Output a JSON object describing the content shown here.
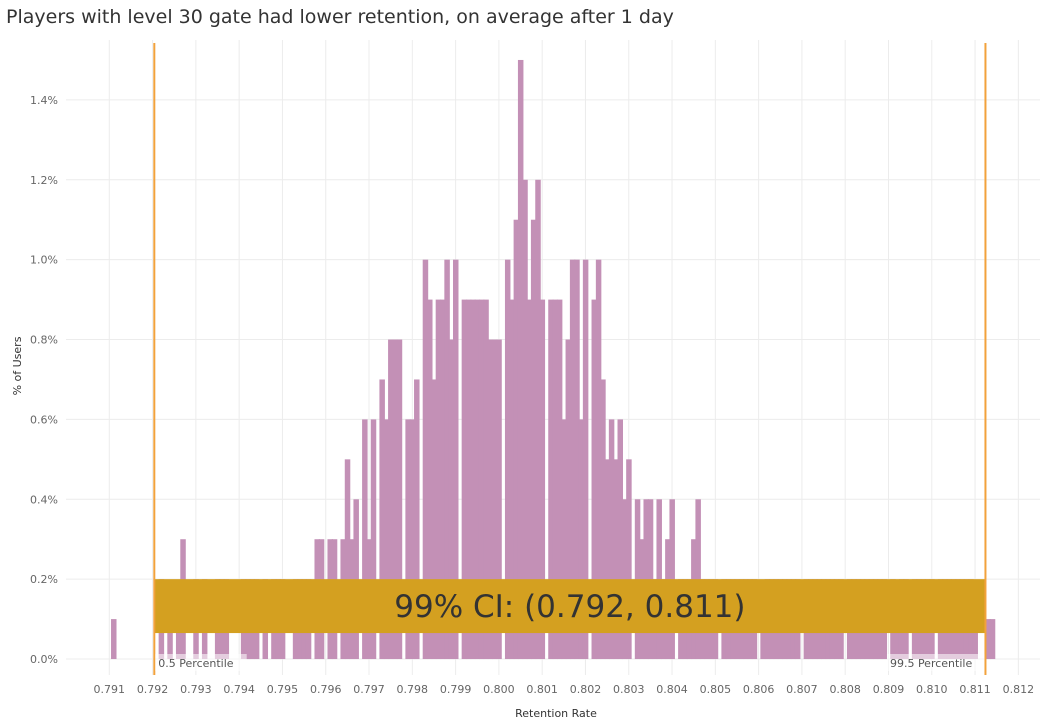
{
  "chart_data": {
    "type": "bar",
    "title": "Players with level 30 gate had lower retention, on average after 1 day",
    "xlabel": "Retention Rate",
    "ylabel": "% of Users",
    "xlim": [
      0.79,
      0.8125
    ],
    "ylim": [
      -0.0004,
      0.0155
    ],
    "x_ticks": [
      0.791,
      0.792,
      0.793,
      0.794,
      0.795,
      0.796,
      0.797,
      0.798,
      0.799,
      0.8,
      0.801,
      0.802,
      0.803,
      0.804,
      0.805,
      0.806,
      0.807,
      0.808,
      0.809,
      0.81,
      0.811,
      0.812
    ],
    "x_tick_labels": [
      "0.791",
      "0.792",
      "0.793",
      "0.794",
      "0.795",
      "0.796",
      "0.797",
      "0.798",
      "0.799",
      "0.800",
      "0.801",
      "0.802",
      "0.803",
      "0.804",
      "0.805",
      "0.806",
      "0.807",
      "0.808",
      "0.809",
      "0.810",
      "0.811",
      "0.812"
    ],
    "y_ticks": [
      0,
      0.002,
      0.004,
      0.006,
      0.008,
      0.01,
      0.012,
      0.014
    ],
    "y_tick_labels": [
      "0.0%",
      "0.2%",
      "0.4%",
      "0.6%",
      "0.8%",
      "1.0%",
      "1.2%",
      "1.4%"
    ],
    "bin_width": 0.00012,
    "x": [
      0.7911,
      0.7922,
      0.7924,
      0.7926,
      0.7927,
      0.793,
      0.7932,
      0.7935,
      0.7936,
      0.7937,
      0.7941,
      0.7942,
      0.7943,
      0.7944,
      0.7946,
      0.7948,
      0.7949,
      0.795,
      0.7953,
      0.7954,
      0.7955,
      0.7956,
      0.7958,
      0.7959,
      0.7961,
      0.7962,
      0.7964,
      0.7965,
      0.7966,
      0.7967,
      0.7969,
      0.797,
      0.7971,
      0.7973,
      0.7974,
      0.7975,
      0.7976,
      0.7977,
      0.7979,
      0.798,
      0.7981,
      0.7983,
      0.7984,
      0.7985,
      0.7986,
      0.7987,
      0.7988,
      0.7989,
      0.799,
      0.7992,
      0.7993,
      0.7994,
      0.7995,
      0.7996,
      0.7997,
      0.7998,
      0.7999,
      0.8,
      0.8002,
      0.8003,
      0.8004,
      0.8005,
      0.8006,
      0.8007,
      0.8008,
      0.8009,
      0.801,
      0.8012,
      0.8013,
      0.8014,
      0.8015,
      0.8016,
      0.8017,
      0.8018,
      0.8019,
      0.802,
      0.8022,
      0.8023,
      0.8024,
      0.8025,
      0.8026,
      0.8027,
      0.8028,
      0.8029,
      0.803,
      0.8032,
      0.8033,
      0.8034,
      0.8035,
      0.8036,
      0.8037,
      0.8038,
      0.8039,
      0.804,
      0.8042,
      0.8043,
      0.8044,
      0.8045,
      0.8046,
      0.8047,
      0.8048,
      0.8049,
      0.805,
      0.8052,
      0.8053,
      0.8054,
      0.8055,
      0.8056,
      0.8057,
      0.8058,
      0.8059,
      0.8061,
      0.8062,
      0.8063,
      0.8064,
      0.8065,
      0.8066,
      0.8067,
      0.8068,
      0.8069,
      0.8071,
      0.8072,
      0.8073,
      0.8074,
      0.8075,
      0.8076,
      0.8077,
      0.8078,
      0.8079,
      0.8081,
      0.8082,
      0.8083,
      0.8084,
      0.8085,
      0.8086,
      0.8087,
      0.8088,
      0.8089,
      0.8091,
      0.8092,
      0.8093,
      0.8094,
      0.8096,
      0.8097,
      0.8098,
      0.8099,
      0.81,
      0.8102,
      0.8103,
      0.8104,
      0.8105,
      0.8106,
      0.8107,
      0.8108,
      0.8109,
      0.811,
      0.8113,
      0.8114
    ],
    "series": [
      {
        "values": [
          0.001,
          0.002,
          0.001,
          0.001,
          0.003,
          0.002,
          0.002,
          0.002,
          0.002,
          0.002,
          0.002,
          0.002,
          0.002,
          0.002,
          0.002,
          0.002,
          0.002,
          0.002,
          0.002,
          0.002,
          0.002,
          0.002,
          0.003,
          0.003,
          0.003,
          0.003,
          0.003,
          0.005,
          0.003,
          0.004,
          0.006,
          0.003,
          0.006,
          0.007,
          0.006,
          0.008,
          0.008,
          0.008,
          0.006,
          0.006,
          0.007,
          0.01,
          0.009,
          0.007,
          0.009,
          0.009,
          0.01,
          0.008,
          0.01,
          0.009,
          0.009,
          0.009,
          0.009,
          0.009,
          0.009,
          0.008,
          0.008,
          0.008,
          0.01,
          0.009,
          0.011,
          0.015,
          0.012,
          0.009,
          0.011,
          0.012,
          0.009,
          0.009,
          0.009,
          0.009,
          0.006,
          0.008,
          0.01,
          0.01,
          0.006,
          0.01,
          0.009,
          0.01,
          0.007,
          0.005,
          0.006,
          0.005,
          0.006,
          0.004,
          0.005,
          0.004,
          0.003,
          0.004,
          0.004,
          0.002,
          0.004,
          0.002,
          0.003,
          0.004,
          0.002,
          0.002,
          0.002,
          0.003,
          0.004,
          0.002,
          0.002,
          0.002,
          0.002,
          0.002,
          0.002,
          0.002,
          0.002,
          0.002,
          0.002,
          0.002,
          0.002,
          0.001,
          0.002,
          0.002,
          0.002,
          0.002,
          0.002,
          0.002,
          0.002,
          0.002,
          0.002,
          0.002,
          0.002,
          0.002,
          0.002,
          0.002,
          0.002,
          0.002,
          0.002,
          0.002,
          0.002,
          0.002,
          0.002,
          0.002,
          0.002,
          0.002,
          0.002,
          0.002,
          0.002,
          0.001,
          0.002,
          0.002,
          0.002,
          0.002,
          0.002,
          0.002,
          0.002,
          0.002,
          0.002,
          0.002,
          0.002,
          0.002,
          0.002,
          0.002,
          0.002,
          0.001,
          0.001,
          0.001
        ]
      }
    ],
    "reference_lines": [
      {
        "label": "0.5 Percentile",
        "x": 0.79204
      },
      {
        "label": "99.5 Percentile",
        "x": 0.81124
      }
    ],
    "ci_band": {
      "text": "99% CI: (0.792, 0.811)",
      "x_start": 0.79204,
      "x_end": 0.81124,
      "y_low": 0.00065,
      "y_high": 0.002
    },
    "bar_color": "#c390b6",
    "line_color": "#f2a23c",
    "band_color": "#d4a020",
    "grid": true
  }
}
